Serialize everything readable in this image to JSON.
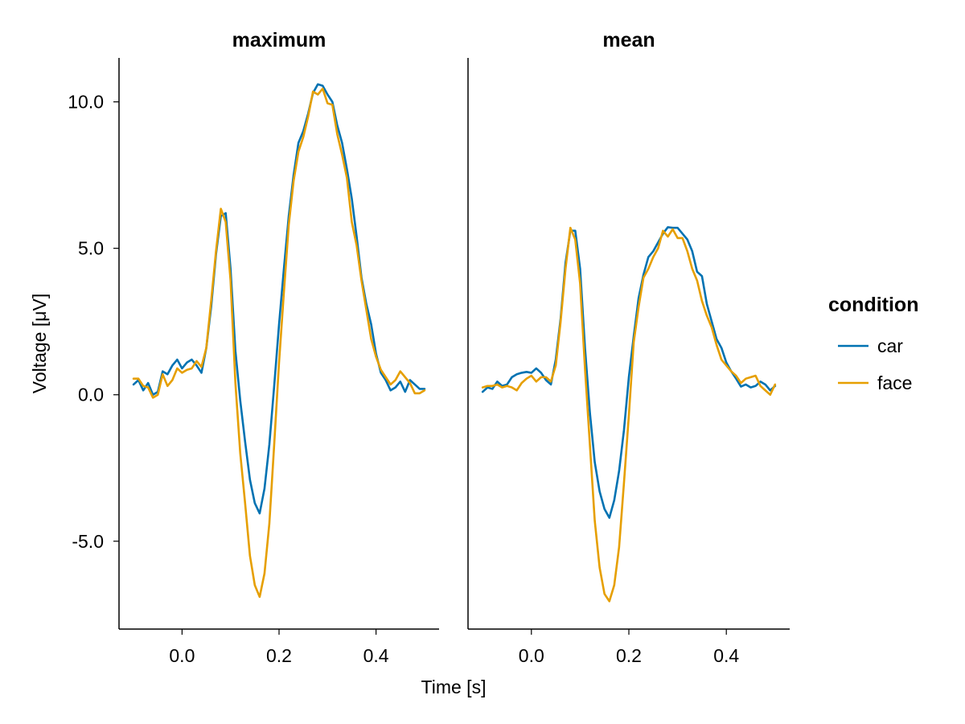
{
  "chart_data": {
    "type": "line",
    "xlabel": "Time [s]",
    "ylabel": "Voltage [μV]",
    "xlim": [
      -0.13,
      0.53
    ],
    "ylim": [
      -8.0,
      11.5
    ],
    "xticks": [
      0.0,
      0.2,
      0.4
    ],
    "xtick_labels": [
      "0.0",
      "0.2",
      "0.4"
    ],
    "yticks": [
      -5.0,
      0.0,
      5.0,
      10.0
    ],
    "ytick_labels": [
      "-5.0",
      "0.0",
      "5.0",
      "10.0"
    ],
    "grid": false,
    "legend": {
      "title": "condition",
      "position": "right",
      "entries": [
        {
          "name": "car",
          "color": "#0072B2"
        },
        {
          "name": "face",
          "color": "#E69F00"
        }
      ]
    },
    "x": [
      -0.1,
      -0.09,
      -0.08,
      -0.07,
      -0.06,
      -0.05,
      -0.04,
      -0.03,
      -0.02,
      -0.01,
      0.0,
      0.01,
      0.02,
      0.03,
      0.04,
      0.05,
      0.06,
      0.07,
      0.08,
      0.09,
      0.1,
      0.11,
      0.12,
      0.13,
      0.14,
      0.15,
      0.16,
      0.17,
      0.18,
      0.19,
      0.2,
      0.21,
      0.22,
      0.23,
      0.24,
      0.25,
      0.26,
      0.27,
      0.28,
      0.29,
      0.3,
      0.31,
      0.32,
      0.33,
      0.34,
      0.35,
      0.36,
      0.37,
      0.38,
      0.39,
      0.4,
      0.41,
      0.42,
      0.43,
      0.44,
      0.45,
      0.46,
      0.47,
      0.48,
      0.49,
      0.5
    ],
    "panels": [
      {
        "title": "maximum",
        "series": [
          {
            "name": "car",
            "color": "#0072B2",
            "values": [
              0.35,
              0.5,
              0.15,
              0.4,
              0.0,
              0.1,
              0.8,
              0.7,
              1.0,
              1.2,
              0.9,
              1.1,
              1.2,
              1.0,
              0.75,
              1.6,
              3.0,
              4.8,
              6.1,
              6.2,
              4.3,
              1.5,
              -0.2,
              -1.6,
              -2.9,
              -3.7,
              -4.05,
              -3.2,
              -1.7,
              0.3,
              2.4,
              4.3,
              6.1,
              7.5,
              8.6,
              9.0,
              9.6,
              10.3,
              10.6,
              10.55,
              10.25,
              10.0,
              9.2,
              8.6,
              7.7,
              6.7,
              5.4,
              4.0,
              3.1,
              2.4,
              1.4,
              0.75,
              0.5,
              0.15,
              0.25,
              0.45,
              0.1,
              0.5,
              0.35,
              0.2,
              0.2
            ]
          },
          {
            "name": "face",
            "color": "#E69F00",
            "values": [
              0.55,
              0.55,
              0.3,
              0.25,
              -0.1,
              0.0,
              0.7,
              0.3,
              0.5,
              0.9,
              0.75,
              0.85,
              0.9,
              1.15,
              0.95,
              1.6,
              3.2,
              4.9,
              6.35,
              5.9,
              3.9,
              0.4,
              -2.0,
              -3.7,
              -5.5,
              -6.5,
              -6.9,
              -6.1,
              -4.4,
              -1.7,
              1.1,
              3.5,
              5.8,
              7.3,
              8.3,
              8.8,
              9.5,
              10.35,
              10.25,
              10.45,
              9.95,
              9.9,
              8.9,
              8.2,
              7.4,
              5.9,
              5.1,
              3.9,
              2.9,
              1.9,
              1.3,
              0.85,
              0.6,
              0.35,
              0.5,
              0.8,
              0.6,
              0.4,
              0.05,
              0.05,
              0.15
            ]
          }
        ]
      },
      {
        "title": "mean",
        "series": [
          {
            "name": "car",
            "color": "#0072B2",
            "values": [
              0.1,
              0.25,
              0.2,
              0.45,
              0.3,
              0.35,
              0.6,
              0.7,
              0.75,
              0.78,
              0.75,
              0.9,
              0.75,
              0.5,
              0.35,
              1.2,
              2.6,
              4.5,
              5.6,
              5.6,
              4.3,
              1.6,
              -0.6,
              -2.3,
              -3.3,
              -3.9,
              -4.2,
              -3.6,
              -2.6,
              -1.2,
              0.6,
              2.0,
              3.3,
              4.1,
              4.7,
              4.9,
              5.2,
              5.5,
              5.72,
              5.7,
              5.7,
              5.5,
              5.3,
              4.9,
              4.2,
              4.05,
              3.1,
              2.5,
              1.9,
              1.6,
              1.1,
              0.8,
              0.55,
              0.28,
              0.35,
              0.25,
              0.3,
              0.45,
              0.35,
              0.15,
              0.3
            ]
          },
          {
            "name": "face",
            "color": "#E69F00",
            "values": [
              0.25,
              0.3,
              0.3,
              0.35,
              0.25,
              0.3,
              0.25,
              0.15,
              0.4,
              0.55,
              0.65,
              0.45,
              0.6,
              0.6,
              0.45,
              1.0,
              2.5,
              4.3,
              5.7,
              5.3,
              3.8,
              0.9,
              -1.7,
              -4.3,
              -5.9,
              -6.8,
              -7.05,
              -6.5,
              -5.2,
              -3.0,
              -0.7,
              1.8,
              3.0,
              4.0,
              4.3,
              4.7,
              5.0,
              5.6,
              5.4,
              5.65,
              5.35,
              5.35,
              4.9,
              4.3,
              3.9,
              3.2,
              2.7,
              2.3,
              1.7,
              1.2,
              1.0,
              0.8,
              0.65,
              0.4,
              0.55,
              0.6,
              0.65,
              0.3,
              0.15,
              0.0,
              0.35
            ]
          }
        ]
      }
    ]
  }
}
